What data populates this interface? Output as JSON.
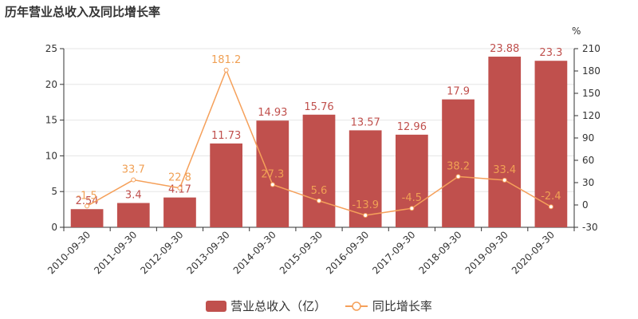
{
  "title": "历年营业总收入及同比增长率",
  "chart_data": {
    "type": "bar",
    "categories": [
      "2010-09-30",
      "2011-09-30",
      "2012-09-30",
      "2013-09-30",
      "2014-09-30",
      "2015-09-30",
      "2016-09-30",
      "2017-09-30",
      "2018-09-30",
      "2019-09-30",
      "2020-09-30"
    ],
    "series": [
      {
        "name": "营业总收入（亿）",
        "type": "bar",
        "axis": "left",
        "color": "#c0504d",
        "label_color": "#c0504d",
        "values": [
          2.54,
          3.4,
          4.17,
          11.73,
          14.93,
          15.76,
          13.57,
          12.96,
          17.9,
          23.88,
          23.3
        ],
        "labels": [
          "2.54",
          "3.4",
          "4.17",
          "11.73",
          "14.93",
          "15.76",
          "13.57",
          "12.96",
          "17.9",
          "23.88",
          "23.3"
        ]
      },
      {
        "name": "同比增长率",
        "type": "line",
        "axis": "right",
        "color": "#f5a05a",
        "label_color": "#f0a054",
        "values": [
          -1.5,
          33.7,
          22.8,
          181.2,
          27.3,
          5.6,
          -13.9,
          -4.5,
          38.2,
          33.4,
          -2.4
        ],
        "labels": [
          "-1.5",
          "33.7",
          "22.8",
          "181.2",
          "27.3",
          "5.6",
          "-13.9",
          "-4.5",
          "38.2",
          "33.4",
          "-2.4"
        ]
      }
    ],
    "y_left": {
      "min": 0,
      "max": 25,
      "ticks": [
        "0",
        "5",
        "10",
        "15",
        "20",
        "25"
      ]
    },
    "y_right": {
      "min": -30,
      "max": 210,
      "ticks": [
        "-30",
        "0",
        "30",
        "60",
        "90",
        "120",
        "150",
        "180",
        "210"
      ],
      "unit": "%"
    },
    "grid": true,
    "legend_position": "bottom"
  },
  "colors": {
    "axis": "#333333",
    "grid": "#e6e6e6"
  }
}
